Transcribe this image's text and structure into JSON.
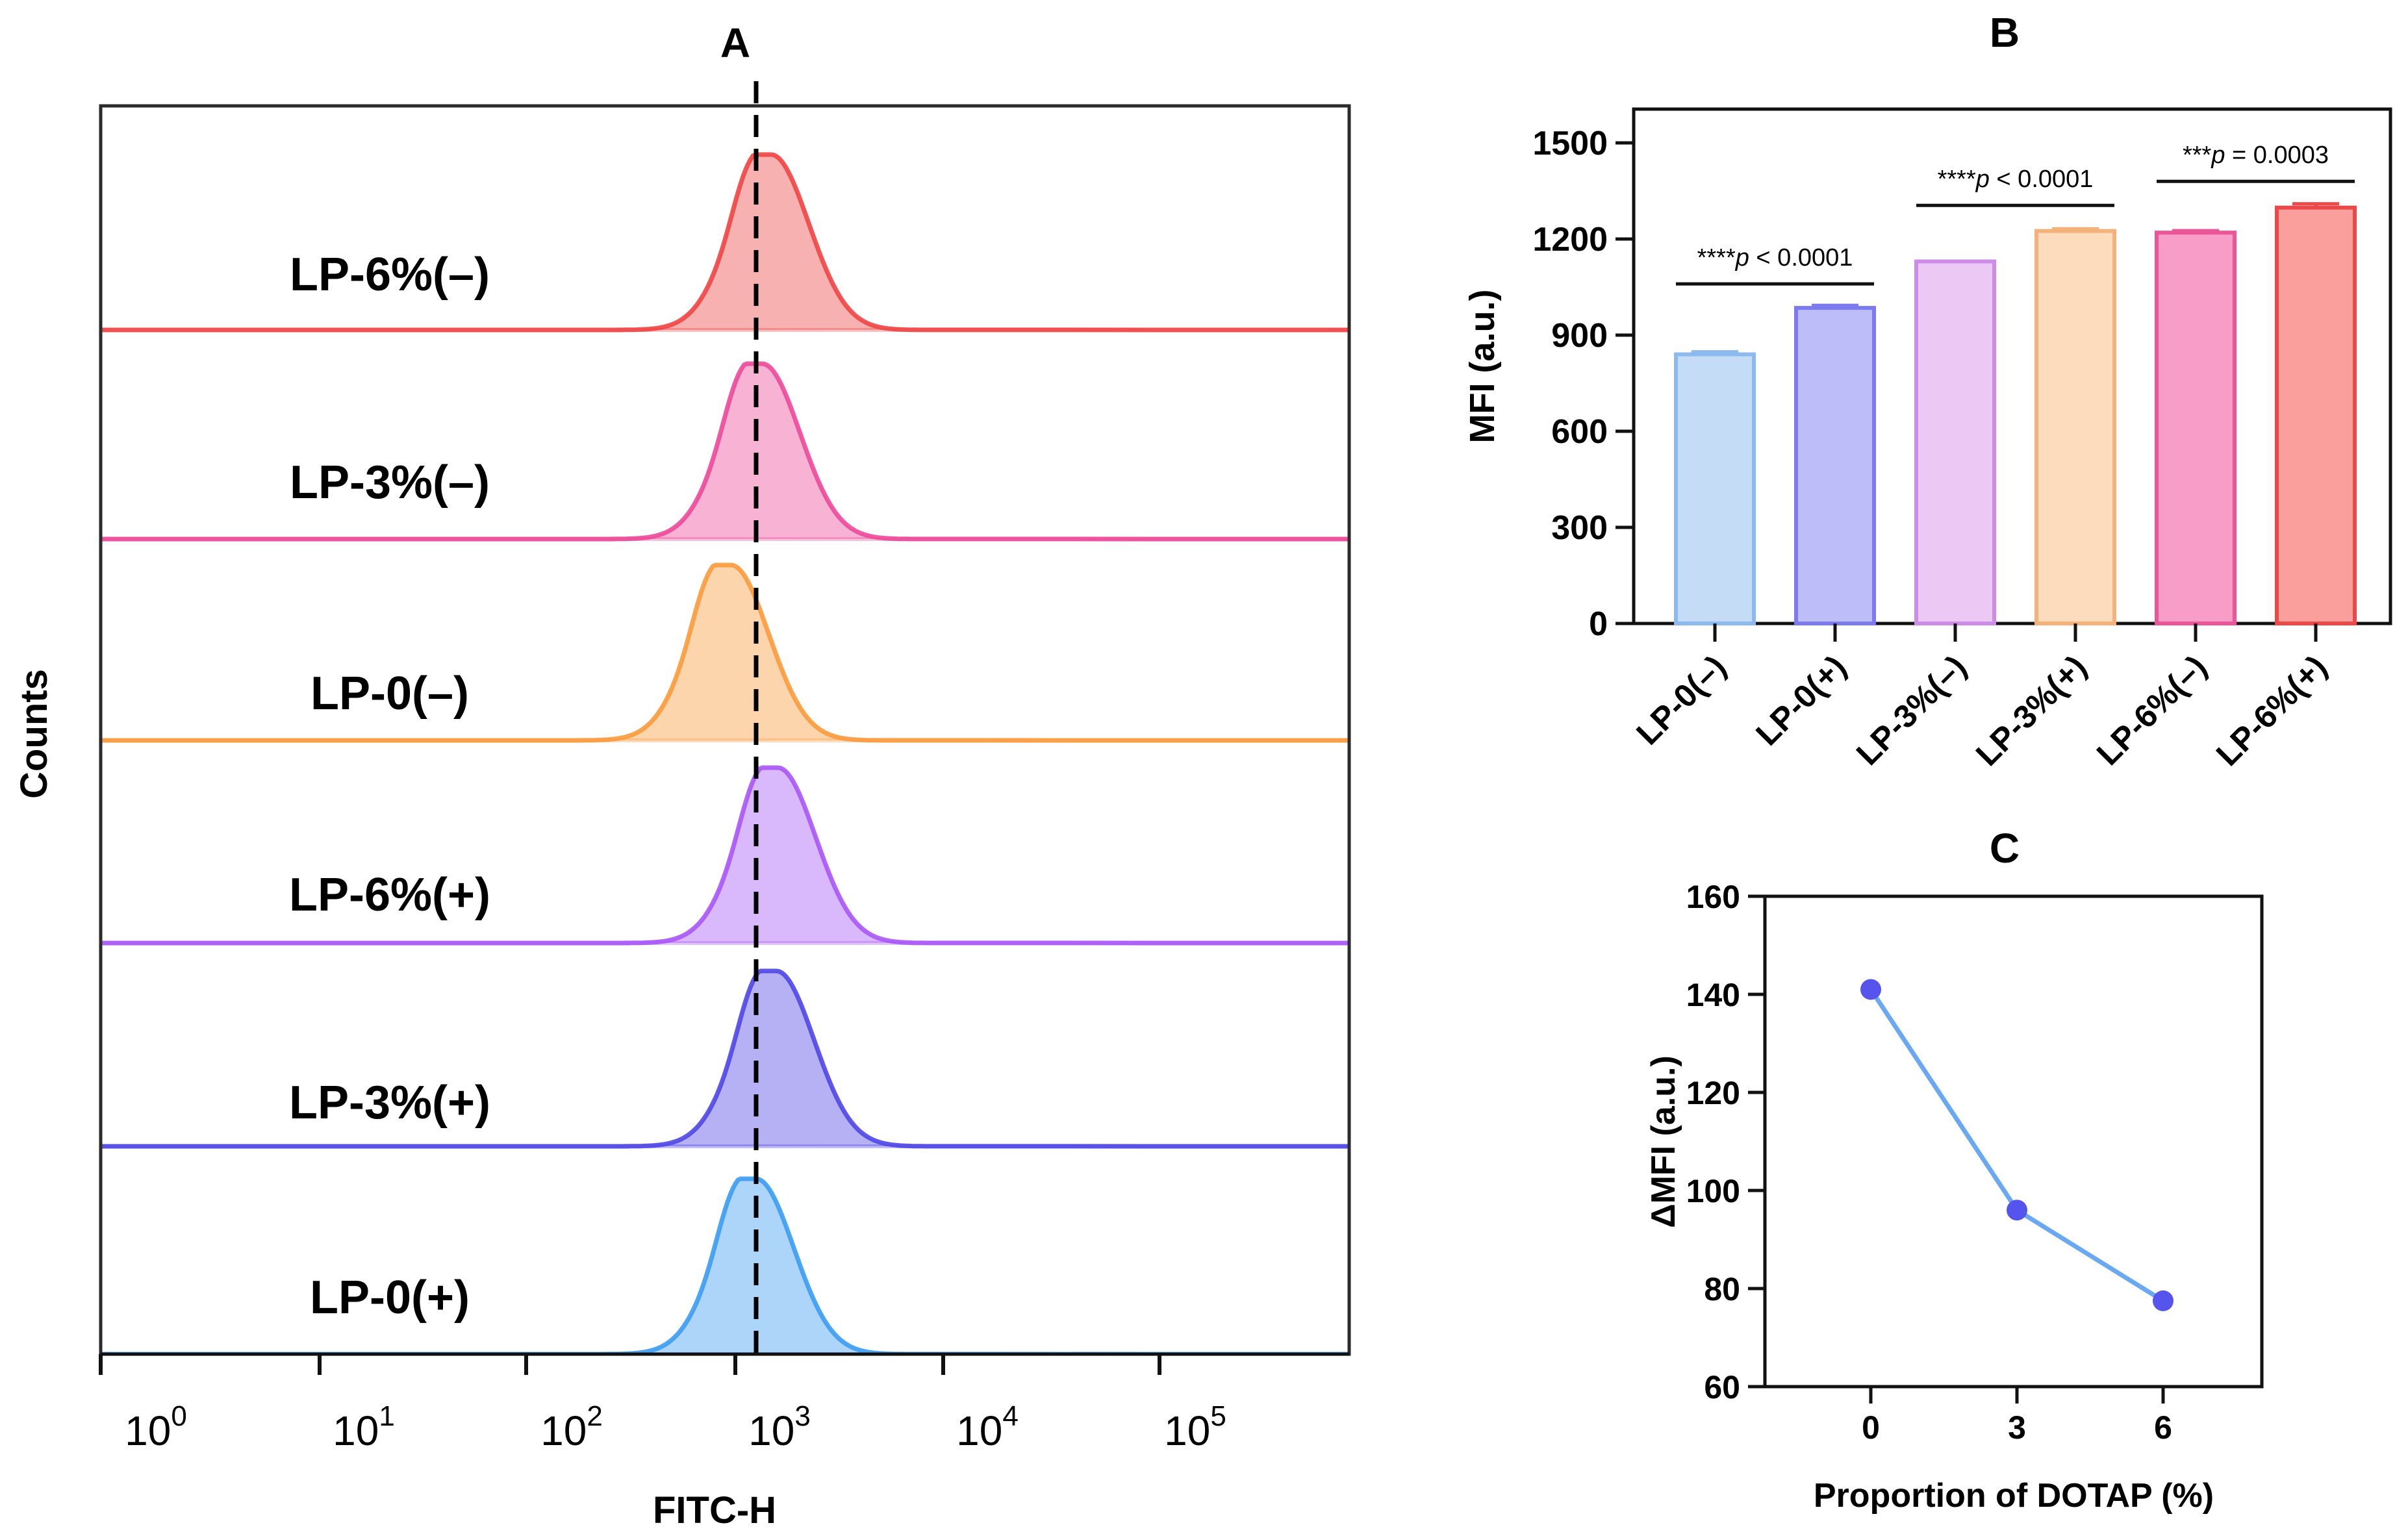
{
  "figure": {
    "panel_a_label": "A",
    "panel_b_label": "B",
    "panel_c_label": "C"
  },
  "chart_data": [
    {
      "panel": "A",
      "type": "area",
      "xlabel": "FITC-H",
      "ylabel": "Counts",
      "x_scale": "log",
      "x_ticks": [
        {
          "base": "10",
          "exp": "0"
        },
        {
          "base": "10",
          "exp": "1"
        },
        {
          "base": "10",
          "exp": "2"
        },
        {
          "base": "10",
          "exp": "3"
        },
        {
          "base": "10",
          "exp": "4"
        },
        {
          "base": "10",
          "exp": "5"
        }
      ],
      "reference_line_x": 1000,
      "series": [
        {
          "name": "LP-6%(–)",
          "color": "#ef4444",
          "peak_x": 1180
        },
        {
          "name": "LP-3%(–)",
          "color": "#ec4899",
          "peak_x": 1070
        },
        {
          "name": "LP-0(–)",
          "color": "#fb9a3c",
          "peak_x": 760
        },
        {
          "name": "LP-6%(+)",
          "color": "#a855f7",
          "peak_x": 1270
        },
        {
          "name": "LP-3%(+)",
          "color": "#4f46e5",
          "peak_x": 1250
        },
        {
          "name": "LP-0(+)",
          "color": "#3b9cf2",
          "peak_x": 1000
        }
      ]
    },
    {
      "panel": "B",
      "type": "bar",
      "ylabel": "MFI (a.u.)",
      "ylim": [
        0,
        1500
      ],
      "yticks": [
        "0",
        "300",
        "600",
        "900",
        "1200",
        "1500"
      ],
      "categories": [
        "LP-0(–)",
        "LP-0(+)",
        "LP-3%(–)",
        "LP-3%(+)",
        "LP-6%(–)",
        "LP-6%(+)"
      ],
      "values": [
        840,
        985,
        1130,
        1225,
        1220,
        1298
      ],
      "errors": [
        8,
        8,
        0,
        7,
        6,
        12
      ],
      "colors": [
        {
          "fill": "#c5dcf7",
          "stroke": "#8cb9ee"
        },
        {
          "fill": "#bdbdfa",
          "stroke": "#7b7bef"
        },
        {
          "fill": "#ecc8f4",
          "stroke": "#cd8ce8"
        },
        {
          "fill": "#fcdcbc",
          "stroke": "#f4b27a"
        },
        {
          "fill": "#f89cc8",
          "stroke": "#ec5598"
        },
        {
          "fill": "#fb9f9c",
          "stroke": "#ec4848"
        }
      ],
      "comparisons": [
        {
          "from": 0,
          "to": 1,
          "stars": "****",
          "rest": " < 0.0001",
          "y": 1060
        },
        {
          "from": 2,
          "to": 3,
          "stars": "****",
          "rest": " < 0.0001",
          "y": 1305
        },
        {
          "from": 4,
          "to": 5,
          "stars": "***",
          "rest": " = 0.0003",
          "y": 1380
        }
      ]
    },
    {
      "panel": "C",
      "type": "line",
      "xlabel": "Proportion of DOTAP (%)",
      "ylabel": "ΔMFI (a.u.)",
      "x": [
        0,
        3,
        6
      ],
      "xticks": [
        "0",
        "3",
        "6"
      ],
      "y": [
        141,
        96,
        77.5
      ],
      "ylim": [
        60,
        160
      ],
      "yticks": [
        "60",
        "80",
        "100",
        "120",
        "140",
        "160"
      ],
      "line_color": "#6aa9f2",
      "marker_color": "#5555ee"
    }
  ]
}
